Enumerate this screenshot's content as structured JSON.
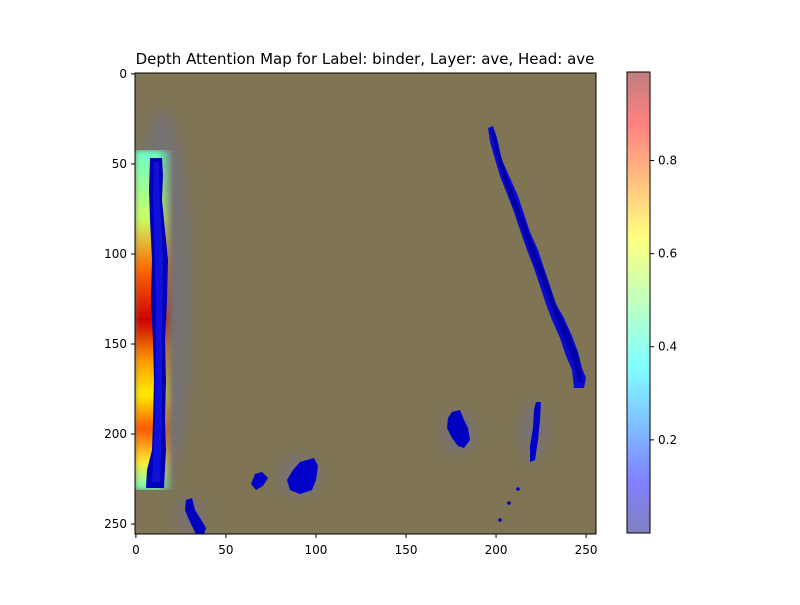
{
  "chart_data": {
    "type": "heatmap",
    "title": "Depth Attention Map for Label: binder, Layer: ave, Head: ave",
    "xlabel": "",
    "ylabel": "",
    "xlim": [
      0,
      255
    ],
    "ylim": [
      255,
      0
    ],
    "x_ticks": [
      0,
      50,
      100,
      150,
      200,
      250
    ],
    "y_ticks": [
      0,
      50,
      100,
      150,
      200,
      250
    ],
    "colorbar": {
      "min": 0.0,
      "max": 0.99,
      "ticks": [
        0.2,
        0.4,
        0.6,
        0.8
      ],
      "colormap": "jet",
      "alpha": 0.5
    },
    "background_value": 0.05,
    "attention_regions": [
      {
        "name": "left-edge-strip",
        "x_range": [
          0,
          18
        ],
        "y_range": [
          48,
          230
        ],
        "peak": 0.95,
        "peak_y": 130
      },
      {
        "name": "right-diagonal-edge",
        "from": [
          197,
          30
        ],
        "to": [
          245,
          172
        ],
        "peak": 0.02
      },
      {
        "name": "blob-175-205",
        "center": [
          178,
          198
        ],
        "peak": 0.02
      },
      {
        "name": "vertical-edge-222",
        "from": [
          224,
          184
        ],
        "to": [
          219,
          215
        ],
        "peak": 0.02
      },
      {
        "name": "blob-93-228",
        "center": [
          93,
          225
        ],
        "peak": 0.02
      },
      {
        "name": "blob-68-225",
        "center": [
          68,
          225
        ],
        "peak": 0.02
      },
      {
        "name": "bottom-left-edge",
        "from": [
          30,
          238
        ],
        "to": [
          38,
          255
        ],
        "peak": 0.02
      }
    ],
    "colors": {
      "background_tint": "#7f7555",
      "low": "#00007f",
      "mid": "#7fff7f",
      "high": "#7f0000"
    }
  }
}
